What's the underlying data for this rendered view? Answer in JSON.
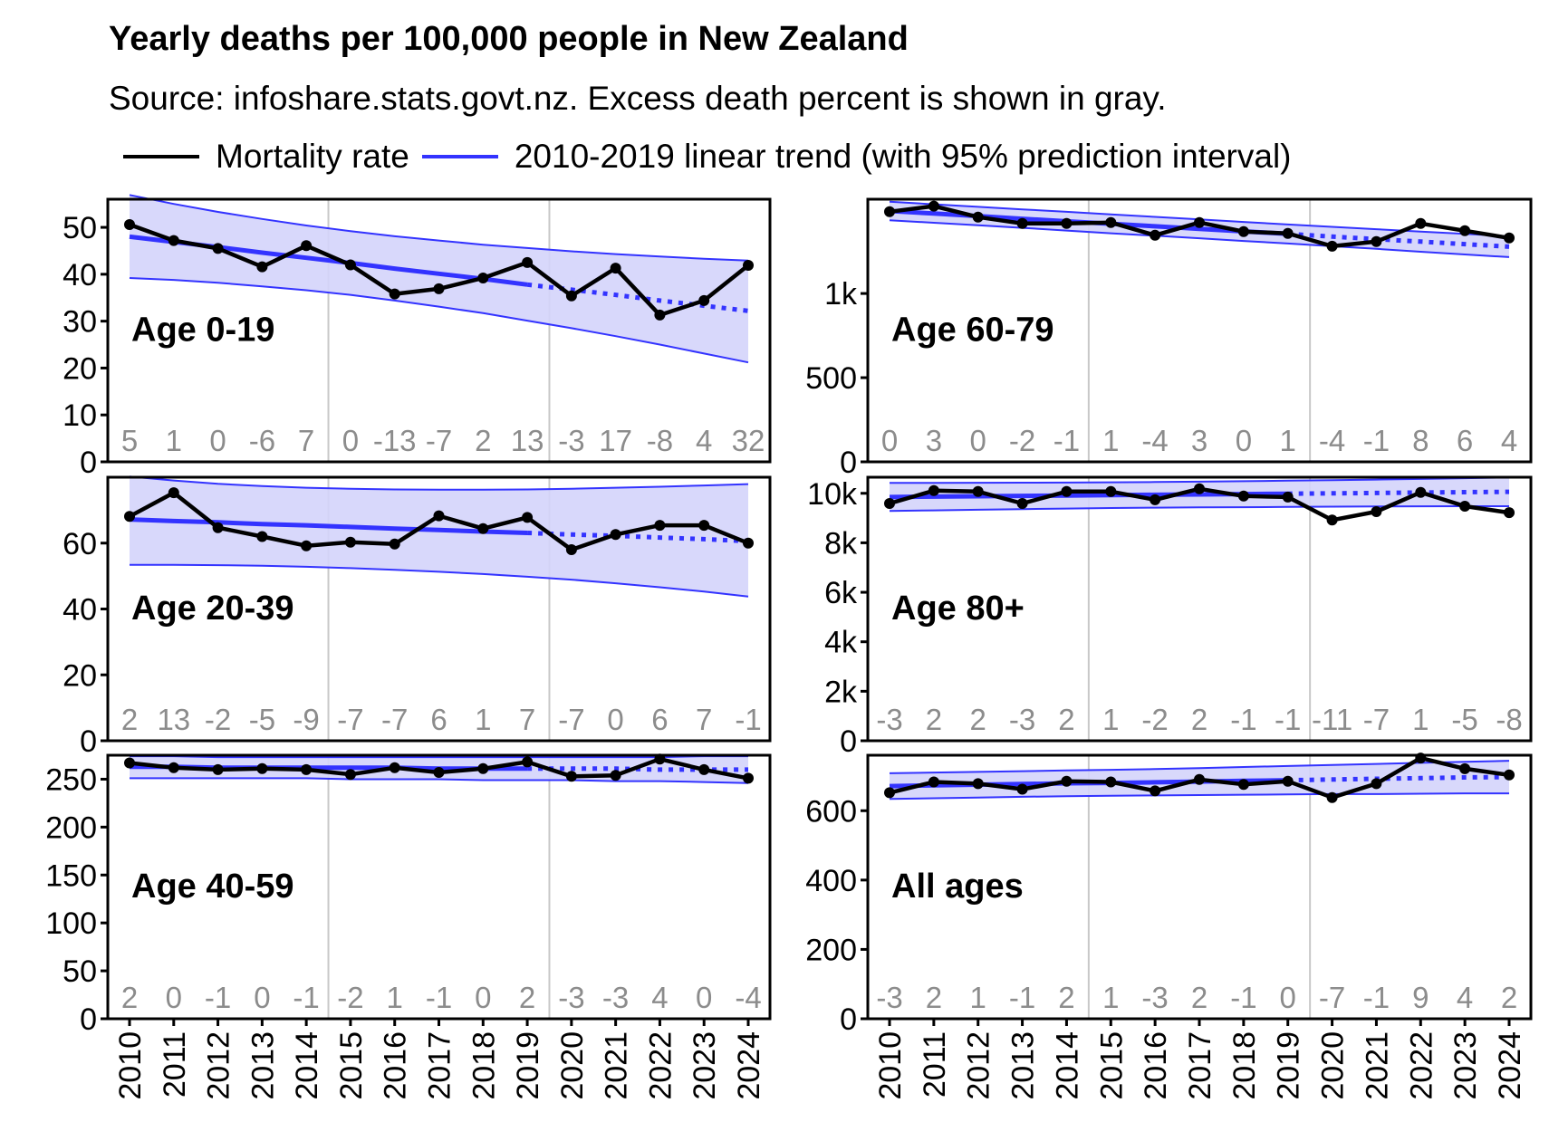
{
  "chart_data": {
    "type": "line",
    "title": "Yearly deaths per 100,000 people in New Zealand",
    "subtitle": "Source: infoshare.stats.govt.nz. Excess death percent is shown in gray.",
    "legend": {
      "placement": "top",
      "items": [
        {
          "label": "Mortality rate",
          "color": "#000000"
        },
        {
          "label": "2010-2019 linear trend (with 95% prediction interval)",
          "color": "#3333ff"
        }
      ]
    },
    "x": [
      2010,
      2011,
      2012,
      2013,
      2014,
      2015,
      2016,
      2017,
      2018,
      2019,
      2020,
      2021,
      2022,
      2023,
      2024
    ],
    "x_tick_labels": [
      "2010",
      "2011",
      "2012",
      "2013",
      "2014",
      "2015",
      "2016",
      "2017",
      "2018",
      "2019",
      "2020",
      "2021",
      "2022",
      "2023",
      "2024"
    ],
    "vertical_gridlines_at": [
      2014.5,
      2019.5
    ],
    "colors": {
      "mortality": "#000000",
      "trend": "#3333ff",
      "band": "#d4d4fb",
      "excess": "#8c8c8c",
      "grid": "#c8c8c8"
    },
    "panels": [
      {
        "label": "Age 0-19",
        "ylim": [
          0,
          56
        ],
        "y_ticks": [
          0,
          10,
          20,
          30,
          40,
          50
        ],
        "y_tick_labels": [
          "0",
          "10",
          "20",
          "30",
          "40",
          "50"
        ],
        "mortality": [
          50.6,
          47.2,
          45.5,
          41.6,
          46.1,
          42.0,
          35.8,
          36.9,
          39.2,
          42.5,
          35.4,
          41.3,
          31.3,
          34.4,
          41.9
        ],
        "trend": [
          48.0,
          46.9,
          45.8,
          44.6,
          43.5,
          42.4,
          41.2,
          40.1,
          39.0,
          37.8,
          36.7,
          35.6,
          34.4,
          33.3,
          32.2
        ],
        "pi_upper": [
          56.9,
          55.0,
          53.3,
          51.8,
          50.4,
          49.2,
          48.1,
          47.2,
          46.3,
          45.6,
          44.9,
          44.3,
          43.8,
          43.3,
          42.9
        ],
        "pi_lower": [
          39.2,
          38.8,
          38.2,
          37.4,
          36.6,
          35.6,
          34.4,
          33.1,
          31.7,
          30.1,
          28.5,
          26.8,
          25.0,
          23.1,
          21.2
        ],
        "excess_percent": [
          "5",
          "1",
          "0",
          "-6",
          "7",
          "0",
          "-13",
          "-7",
          "2",
          "13",
          "-3",
          "17",
          "-8",
          "4",
          "32"
        ]
      },
      {
        "label": "Age 60-79",
        "ylim": [
          0,
          1560
        ],
        "y_ticks": [
          0,
          500,
          1000
        ],
        "y_tick_labels": [
          "0",
          "500",
          "1k"
        ],
        "mortality": [
          1486,
          1519,
          1454,
          1416,
          1416,
          1422,
          1346,
          1422,
          1368,
          1357,
          1281,
          1308,
          1416,
          1373,
          1330
        ],
        "trend": [
          1490,
          1475,
          1460,
          1444,
          1429,
          1414,
          1399,
          1384,
          1369,
          1354,
          1338,
          1323,
          1308,
          1293,
          1278
        ],
        "pi_upper": [
          1545,
          1530,
          1515,
          1500,
          1485,
          1470,
          1455,
          1440,
          1425,
          1410,
          1396,
          1382,
          1368,
          1354,
          1340
        ],
        "pi_lower": [
          1435,
          1420,
          1405,
          1390,
          1374,
          1358,
          1343,
          1328,
          1312,
          1297,
          1281,
          1265,
          1248,
          1232,
          1216
        ],
        "excess_percent": [
          "0",
          "3",
          "0",
          "-2",
          "-1",
          "1",
          "-4",
          "3",
          "0",
          "1",
          "-4",
          "-1",
          "8",
          "6",
          "4"
        ]
      },
      {
        "label": "Age 20-39",
        "ylim": [
          0,
          80
        ],
        "y_ticks": [
          0,
          20,
          40,
          60
        ],
        "y_tick_labels": [
          "0",
          "20",
          "40",
          "60"
        ],
        "mortality": [
          68.1,
          75.3,
          64.7,
          62.0,
          59.2,
          60.3,
          59.7,
          68.3,
          64.4,
          67.8,
          58.0,
          62.6,
          65.4,
          65.4,
          60.0
        ],
        "trend": [
          67.2,
          66.7,
          66.3,
          65.8,
          65.4,
          64.9,
          64.4,
          64.0,
          63.5,
          63.1,
          62.6,
          62.2,
          61.7,
          61.2,
          60.6
        ],
        "pi_upper": [
          80.2,
          79.0,
          78.0,
          77.3,
          76.8,
          76.5,
          76.3,
          76.2,
          76.2,
          76.3,
          76.5,
          76.8,
          77.1,
          77.5,
          77.9
        ],
        "pi_lower": [
          53.4,
          53.4,
          53.3,
          53.1,
          52.8,
          52.4,
          51.9,
          51.3,
          50.6,
          49.8,
          48.9,
          47.8,
          46.6,
          45.3,
          43.8
        ],
        "excess_percent": [
          "2",
          "13",
          "-2",
          "-5",
          "-9",
          "-7",
          "-7",
          "6",
          "1",
          "7",
          "-7",
          "0",
          "6",
          "7",
          "-1"
        ]
      },
      {
        "label": "Age 80+",
        "ylim": [
          0,
          10650
        ],
        "y_ticks": [
          0,
          2000,
          4000,
          6000,
          8000,
          10000
        ],
        "y_tick_labels": [
          "0",
          "2k",
          "4k",
          "6k",
          "8k",
          "10k"
        ],
        "mortality": [
          9590,
          10110,
          10070,
          9590,
          10070,
          10070,
          9740,
          10180,
          9890,
          9850,
          8920,
          9260,
          10040,
          9480,
          9220
        ],
        "trend": [
          9850,
          9865,
          9880,
          9895,
          9910,
          9925,
          9940,
          9955,
          9970,
          9985,
          10000,
          10015,
          10030,
          10045,
          10060
        ],
        "pi_upper": [
          10420,
          10420,
          10425,
          10430,
          10435,
          10445,
          10455,
          10470,
          10490,
          10510,
          10530,
          10555,
          10580,
          10610,
          10640
        ],
        "pi_lower": [
          9290,
          9310,
          9335,
          9360,
          9385,
          9405,
          9420,
          9430,
          9440,
          9450,
          9460,
          9470,
          9475,
          9480,
          9480
        ],
        "excess_percent": [
          "-3",
          "2",
          "2",
          "-3",
          "2",
          "1",
          "-2",
          "2",
          "-1",
          "-1",
          "-11",
          "-7",
          "1",
          "-5",
          "-8"
        ]
      },
      {
        "label": "Age 40-59",
        "ylim": [
          0,
          275
        ],
        "y_ticks": [
          0,
          50,
          100,
          150,
          200,
          250
        ],
        "y_tick_labels": [
          "0",
          "50",
          "100",
          "150",
          "200",
          "250"
        ],
        "mortality": [
          267,
          262,
          260,
          261,
          260,
          255,
          262,
          257,
          261,
          268,
          253,
          254,
          271,
          260,
          251
        ],
        "trend": [
          263,
          263,
          262,
          262,
          262,
          262,
          262,
          261,
          261,
          261,
          261,
          261,
          260,
          260,
          260
        ],
        "pi_upper": [
          274,
          274,
          273,
          273,
          273,
          273,
          273,
          273,
          273,
          273,
          273,
          273,
          273,
          274,
          274
        ],
        "pi_lower": [
          251,
          251,
          251,
          251,
          251,
          250,
          250,
          250,
          249,
          249,
          249,
          248,
          248,
          247,
          246
        ],
        "excess_percent": [
          "2",
          "0",
          "-1",
          "0",
          "-1",
          "-2",
          "1",
          "-1",
          "0",
          "2",
          "-3",
          "-3",
          "4",
          "0",
          "-4"
        ]
      },
      {
        "label": "All ages",
        "ylim": [
          0,
          760
        ],
        "y_ticks": [
          0,
          200,
          400,
          600
        ],
        "y_tick_labels": [
          "0",
          "200",
          "400",
          "600"
        ],
        "mortality": [
          652,
          683,
          678,
          662,
          685,
          683,
          657,
          690,
          676,
          685,
          638,
          678,
          752,
          721,
          703
        ],
        "trend": [
          671,
          673,
          675,
          677,
          679,
          680,
          682,
          684,
          686,
          688,
          690,
          692,
          694,
          696,
          697
        ],
        "pi_upper": [
          708,
          710,
          712,
          714,
          716,
          718,
          720,
          723,
          726,
          729,
          732,
          735,
          738,
          741,
          744
        ],
        "pi_lower": [
          634,
          636,
          638,
          640,
          642,
          643,
          644,
          645,
          646,
          647,
          648,
          648,
          649,
          650,
          650
        ],
        "excess_percent": [
          "-3",
          "2",
          "1",
          "-1",
          "2",
          "1",
          "-3",
          "2",
          "-1",
          "0",
          "-7",
          "-1",
          "9",
          "4",
          "2"
        ]
      }
    ]
  }
}
